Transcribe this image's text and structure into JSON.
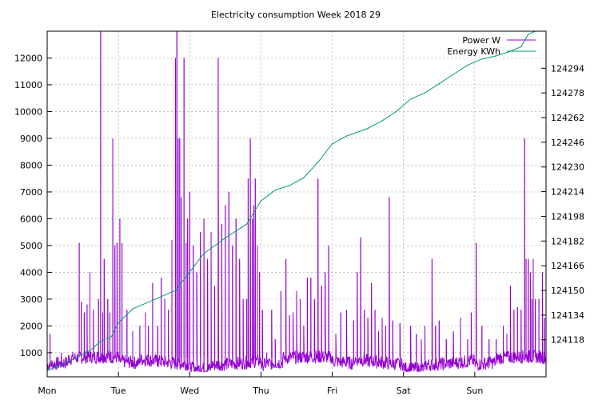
{
  "chart_data": {
    "type": "line",
    "title": "Electricity consumption Week 2018 29",
    "x_ticks": [
      "Mon",
      "Tue",
      "Wed",
      "Thu",
      "Fri",
      "Sat",
      "Sun"
    ],
    "x_range_days": [
      0,
      7
    ],
    "y_left": {
      "ticks": [
        1000,
        2000,
        3000,
        4000,
        5000,
        6000,
        7000,
        8000,
        9000,
        10000,
        11000,
        12000
      ],
      "range": [
        100,
        13000
      ]
    },
    "y_right": {
      "ticks": [
        124118,
        124134,
        124150,
        124166,
        124182,
        124198,
        124214,
        124230,
        124246,
        124262,
        124278,
        124294
      ],
      "range": [
        124094,
        124318
      ]
    },
    "grid": true,
    "legend_position": "top-right",
    "series": [
      {
        "name": "Power W",
        "axis": "left",
        "color": "#9400d3",
        "spikes": [
          [
            0.04,
            1700
          ],
          [
            0.2,
            1000
          ],
          [
            0.45,
            5100
          ],
          [
            0.48,
            2900
          ],
          [
            0.52,
            2500
          ],
          [
            0.56,
            2800
          ],
          [
            0.6,
            4000
          ],
          [
            0.65,
            2600
          ],
          [
            0.72,
            3000
          ],
          [
            0.75,
            15000
          ],
          [
            0.78,
            2500
          ],
          [
            0.8,
            4500
          ],
          [
            0.85,
            3000
          ],
          [
            0.88,
            2500
          ],
          [
            0.92,
            9000
          ],
          [
            0.95,
            5000
          ],
          [
            0.98,
            5100
          ],
          [
            1.02,
            6000
          ],
          [
            1.05,
            5100
          ],
          [
            1.12,
            2600
          ],
          [
            1.2,
            1800
          ],
          [
            1.3,
            2000
          ],
          [
            1.38,
            2500
          ],
          [
            1.42,
            2000
          ],
          [
            1.48,
            3600
          ],
          [
            1.55,
            2000
          ],
          [
            1.6,
            3800
          ],
          [
            1.65,
            3000
          ],
          [
            1.7,
            2600
          ],
          [
            1.75,
            5200
          ],
          [
            1.8,
            12000
          ],
          [
            1.82,
            13000
          ],
          [
            1.84,
            9000
          ],
          [
            1.86,
            9000
          ],
          [
            1.88,
            6800
          ],
          [
            1.92,
            12000
          ],
          [
            1.95,
            5100
          ],
          [
            1.97,
            6000
          ],
          [
            2.0,
            7000
          ],
          [
            2.05,
            5000
          ],
          [
            2.1,
            4000
          ],
          [
            2.15,
            5500
          ],
          [
            2.2,
            6000
          ],
          [
            2.25,
            4500
          ],
          [
            2.3,
            5500
          ],
          [
            2.35,
            3500
          ],
          [
            2.4,
            12000
          ],
          [
            2.45,
            5800
          ],
          [
            2.5,
            6500
          ],
          [
            2.55,
            7000
          ],
          [
            2.6,
            5000
          ],
          [
            2.65,
            6000
          ],
          [
            2.7,
            4500
          ],
          [
            2.75,
            3000
          ],
          [
            2.8,
            3000
          ],
          [
            2.82,
            7500
          ],
          [
            2.85,
            9000
          ],
          [
            2.88,
            6000
          ],
          [
            2.9,
            6500
          ],
          [
            2.92,
            7500
          ],
          [
            2.95,
            5000
          ],
          [
            2.98,
            4000
          ],
          [
            3.02,
            2600
          ],
          [
            3.08,
            1000
          ],
          [
            3.15,
            2600
          ],
          [
            3.2,
            1500
          ],
          [
            3.28,
            3300
          ],
          [
            3.35,
            4500
          ],
          [
            3.4,
            2400
          ],
          [
            3.45,
            2500
          ],
          [
            3.5,
            3300
          ],
          [
            3.55,
            3000
          ],
          [
            3.6,
            2000
          ],
          [
            3.65,
            3800
          ],
          [
            3.7,
            3800
          ],
          [
            3.75,
            3000
          ],
          [
            3.8,
            7500
          ],
          [
            3.85,
            3500
          ],
          [
            3.9,
            4000
          ],
          [
            3.95,
            5000
          ],
          [
            4.05,
            1700
          ],
          [
            4.12,
            2500
          ],
          [
            4.2,
            2600
          ],
          [
            4.3,
            2200
          ],
          [
            4.35,
            4000
          ],
          [
            4.4,
            5300
          ],
          [
            4.45,
            2600
          ],
          [
            4.5,
            2300
          ],
          [
            4.55,
            3600
          ],
          [
            4.6,
            2600
          ],
          [
            4.65,
            1800
          ],
          [
            4.7,
            2300
          ],
          [
            4.75,
            2000
          ],
          [
            4.8,
            6800
          ],
          [
            4.85,
            2200
          ],
          [
            4.95,
            2100
          ],
          [
            5.1,
            2000
          ],
          [
            5.18,
            1700
          ],
          [
            5.25,
            1500
          ],
          [
            5.3,
            2000
          ],
          [
            5.4,
            4500
          ],
          [
            5.45,
            2000
          ],
          [
            5.5,
            2200
          ],
          [
            5.6,
            1500
          ],
          [
            5.7,
            1800
          ],
          [
            5.8,
            2300
          ],
          [
            5.9,
            1500
          ],
          [
            5.95,
            2500
          ],
          [
            6.02,
            5100
          ],
          [
            6.1,
            2000
          ],
          [
            6.2,
            1500
          ],
          [
            6.3,
            1500
          ],
          [
            6.4,
            2000
          ],
          [
            6.45,
            1700
          ],
          [
            6.5,
            3500
          ],
          [
            6.55,
            2600
          ],
          [
            6.6,
            2700
          ],
          [
            6.65,
            2600
          ],
          [
            6.7,
            9000
          ],
          [
            6.72,
            4500
          ],
          [
            6.75,
            4500
          ],
          [
            6.78,
            4000
          ],
          [
            6.8,
            3000
          ],
          [
            6.82,
            4500
          ],
          [
            6.85,
            3000
          ],
          [
            6.9,
            3000
          ],
          [
            6.93,
            1000
          ],
          [
            6.95,
            4000
          ],
          [
            6.98,
            2300
          ]
        ]
      },
      {
        "name": "Energy KWh",
        "axis": "right",
        "color": "#009e73",
        "points": [
          [
            0,
            124098
          ],
          [
            0.3,
            124104
          ],
          [
            0.6,
            124111
          ],
          [
            0.75,
            124117
          ],
          [
            0.9,
            124120
          ],
          [
            1.0,
            124129
          ],
          [
            1.2,
            124138
          ],
          [
            1.5,
            124144
          ],
          [
            1.8,
            124150
          ],
          [
            2.0,
            124162
          ],
          [
            2.2,
            124174
          ],
          [
            2.5,
            124184
          ],
          [
            2.8,
            124193
          ],
          [
            3.0,
            124208
          ],
          [
            3.2,
            124215
          ],
          [
            3.4,
            124218
          ],
          [
            3.6,
            124223
          ],
          [
            3.8,
            124233
          ],
          [
            4.0,
            124245
          ],
          [
            4.2,
            124250
          ],
          [
            4.5,
            124255
          ],
          [
            4.7,
            124260
          ],
          [
            4.9,
            124266
          ],
          [
            5.1,
            124274
          ],
          [
            5.3,
            124278
          ],
          [
            5.5,
            124284
          ],
          [
            5.7,
            124290
          ],
          [
            5.9,
            124296
          ],
          [
            6.1,
            124300
          ],
          [
            6.3,
            124302
          ],
          [
            6.5,
            124305
          ],
          [
            6.65,
            124308
          ],
          [
            6.75,
            124316
          ],
          [
            6.85,
            124318
          ],
          [
            7.0,
            124320
          ]
        ]
      }
    ]
  }
}
